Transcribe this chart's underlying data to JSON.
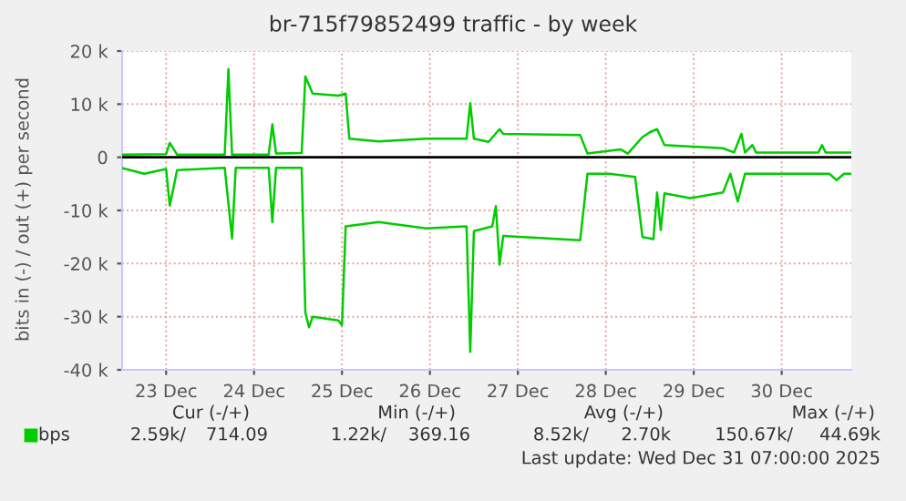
{
  "chart_data": {
    "type": "line",
    "title": "br-715f79852499 traffic - by week",
    "ylabel": "bits in (-) / out (+) per second",
    "series": [
      {
        "name": "bps",
        "color": "#00cc00",
        "x": [
          "2025-12-23T00:00",
          "2025-12-23T12:00",
          "2025-12-23T13:00",
          "2025-12-23T15:00",
          "2025-12-24T04:00",
          "2025-12-24T05:00",
          "2025-12-24T06:00",
          "2025-12-24T16:00",
          "2025-12-24T17:00",
          "2025-12-24T18:00",
          "2025-12-25T01:00",
          "2025-12-25T02:00",
          "2025-12-25T04:00",
          "2025-12-25T11:00",
          "2025-12-25T13:00",
          "2025-12-25T14:00",
          "2025-12-25T22:00",
          "2025-12-26T11:00",
          "2025-12-26T22:00",
          "2025-12-26T23:00",
          "2025-12-27T00:00",
          "2025-12-27T04:00",
          "2025-12-27T07:00",
          "2025-12-27T08:00",
          "2025-12-28T05:00",
          "2025-12-28T07:00",
          "2025-12-28T16:00",
          "2025-12-28T18:00",
          "2025-12-28T22:00",
          "2025-12-29T00:00",
          "2025-12-29T02:00",
          "2025-12-29T04:00",
          "2025-12-29T20:00",
          "2025-12-29T23:00",
          "2025-12-30T01:00",
          "2025-12-30T02:00",
          "2025-12-30T04:00",
          "2025-12-30T05:00",
          "2025-12-30T22:00",
          "2025-12-30T23:00",
          "2025-12-31T00:00",
          "2025-12-31T07:00"
        ],
        "values": [
          500,
          600,
          2700,
          500,
          500,
          16600,
          500,
          500,
          6200,
          700,
          800,
          15200,
          12000,
          11600,
          12000,
          3500,
          3000,
          3500,
          3500,
          10200,
          3500,
          2900,
          5300,
          4400,
          4200,
          700,
          1500,
          700,
          3800,
          4700,
          5300,
          2300,
          1700,
          900,
          4400,
          900,
          2300,
          900,
          900,
          2300,
          900,
          900
        ]
      },
      {
        "color": "#00cc00",
        "x": [
          "2025-12-23T00:00",
          "2025-12-23T06:00",
          "2025-12-23T12:00",
          "2025-12-23T13:00",
          "2025-12-23T15:00",
          "2025-12-24T04:00",
          "2025-12-24T06:00",
          "2025-12-24T07:00",
          "2025-12-24T16:00",
          "2025-12-24T17:00",
          "2025-12-24T18:00",
          "2025-12-25T01:00",
          "2025-12-25T02:00",
          "2025-12-25T03:00",
          "2025-12-25T04:00",
          "2025-12-25T11:00",
          "2025-12-25T12:00",
          "2025-12-25T13:00",
          "2025-12-25T22:00",
          "2025-12-26T11:00",
          "2025-12-26T22:00",
          "2025-12-26T23:00",
          "2025-12-27T00:00",
          "2025-12-27T05:00",
          "2025-12-27T06:00",
          "2025-12-27T07:00",
          "2025-12-27T08:00",
          "2025-12-28T05:00",
          "2025-12-28T07:00",
          "2025-12-28T13:00",
          "2025-12-28T20:00",
          "2025-12-28T22:00",
          "2025-12-29T01:00",
          "2025-12-29T02:00",
          "2025-12-29T03:00",
          "2025-12-29T04:00",
          "2025-12-29T11:00",
          "2025-12-29T20:00",
          "2025-12-29T22:00",
          "2025-12-30T00:00",
          "2025-12-30T02:00",
          "2025-12-31T01:00",
          "2025-12-31T03:00",
          "2025-12-31T05:00",
          "2025-12-31T07:00"
        ],
        "values": [
          -2000,
          -3100,
          -2200,
          -9100,
          -2400,
          -2000,
          -15300,
          -2000,
          -2000,
          -12200,
          -2000,
          -2000,
          -29200,
          -32000,
          -30000,
          -30700,
          -31600,
          -13000,
          -12200,
          -13400,
          -13000,
          -36600,
          -13900,
          -13000,
          -9200,
          -20200,
          -14800,
          -15600,
          -3100,
          -3100,
          -3700,
          -15000,
          -15400,
          -6600,
          -13700,
          -6800,
          -7700,
          -6600,
          -3100,
          -8300,
          -3100,
          -3100,
          -4300,
          -3100,
          -3100
        ]
      }
    ],
    "xlim": [
      "2025-12-23T00:00",
      "2025-12-31T07:00"
    ],
    "xticks": [
      {
        "value": "2025-12-23T12:00",
        "label": "23 Dec"
      },
      {
        "value": "2025-12-24T12:00",
        "label": "24 Dec"
      },
      {
        "value": "2025-12-25T12:00",
        "label": "25 Dec"
      },
      {
        "value": "2025-12-26T12:00",
        "label": "26 Dec"
      },
      {
        "value": "2025-12-27T12:00",
        "label": "27 Dec"
      },
      {
        "value": "2025-12-28T12:00",
        "label": "28 Dec"
      },
      {
        "value": "2025-12-29T12:00",
        "label": "29 Dec"
      },
      {
        "value": "2025-12-30T12:00",
        "label": "30 Dec"
      }
    ],
    "ylim": [
      -40000,
      20000
    ],
    "yticks": [
      {
        "value": -40000,
        "label": "-40 k"
      },
      {
        "value": -30000,
        "label": "-30 k"
      },
      {
        "value": -20000,
        "label": "-20 k"
      },
      {
        "value": -10000,
        "label": "-10 k"
      },
      0,
      {
        "value": 10000,
        "label": "10 k"
      },
      {
        "value": 20000,
        "label": "20 k"
      }
    ],
    "ref_lines": [
      {
        "axis": "y",
        "value": 0,
        "color": "#000000"
      }
    ],
    "grid": true,
    "legend": "bottom left",
    "annotations": [
      "Cur (-/+)",
      "Min (-/+)",
      "Avg (-/+)",
      "Max (-/+)",
      "2.59k/",
      "714.09",
      "1.22k/",
      "369.16",
      "8.52k/",
      "2.70k",
      "150.67k/",
      "44.69k",
      "Last update: Wed Dec 31 07:00:00 2025"
    ]
  }
}
